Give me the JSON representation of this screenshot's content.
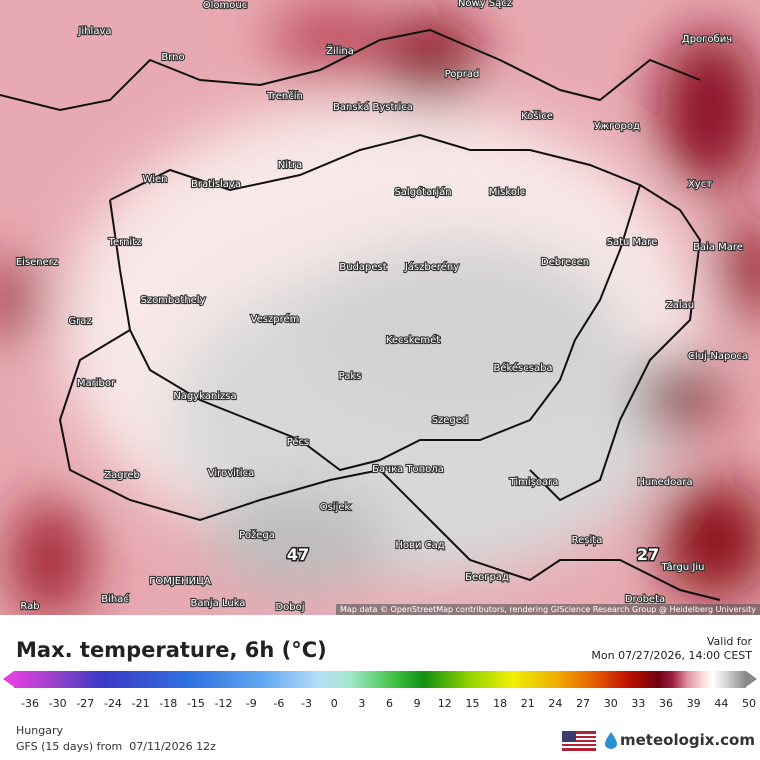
{
  "header": {
    "title": "Max. temperature, 6h (°C)",
    "valid_label": "Valid for",
    "valid_time": "Mon 07/27/2026, 14:00 CEST"
  },
  "map": {
    "cities": [
      "Olomouc",
      "Jihlava",
      "Nowy Sącz",
      "Žilina",
      "Brno",
      "Poprad",
      "Дрогобич",
      "Trenčín",
      "Banská Bystrica",
      "Košice",
      "Ужгород",
      "Nitra",
      "Wien",
      "Bratislava",
      "Salgótarján",
      "Miskolc",
      "Хуст",
      "Eisenerz",
      "Ternitz",
      "Budapest",
      "Jászberény",
      "Debrecen",
      "Baia Mare",
      "Satu Mare",
      "Szombathely",
      "Graz",
      "Veszprém",
      "Zalau",
      "Kecskemét",
      "Cluj-Napoca",
      "Maribor",
      "Paks",
      "Békéscsaba",
      "Nagykanizsa",
      "Szeged",
      "Pécs",
      "Zagreb",
      "Virovitica",
      "Бачка Топола",
      "Timișoara",
      "Hunedoara",
      "Osijek",
      "Požega",
      "Нови Сад",
      "Reșița",
      "Târgu Jiu",
      "ГОМЈЕНИЦА",
      "Bihać",
      "Banja Luka",
      "Doboj",
      "Београд",
      "Drobeta",
      "Rab"
    ],
    "extremes": [
      "47",
      "27"
    ],
    "attribution": "Map data © OpenStreetMap contributors, rendering GIScience Research Group @ Heidelberg University"
  },
  "colorbar": {
    "ticks": [
      -36,
      -30,
      -27,
      -24,
      -21,
      -18,
      -15,
      -12,
      -9,
      -6,
      -3,
      0,
      3,
      6,
      9,
      12,
      15,
      18,
      21,
      24,
      27,
      30,
      33,
      36,
      39,
      44,
      50
    ]
  },
  "footer": {
    "region": "Hungary",
    "model": "GFS (15 days) from  07/11/2026 12z",
    "brand": "meteologix.com"
  }
}
